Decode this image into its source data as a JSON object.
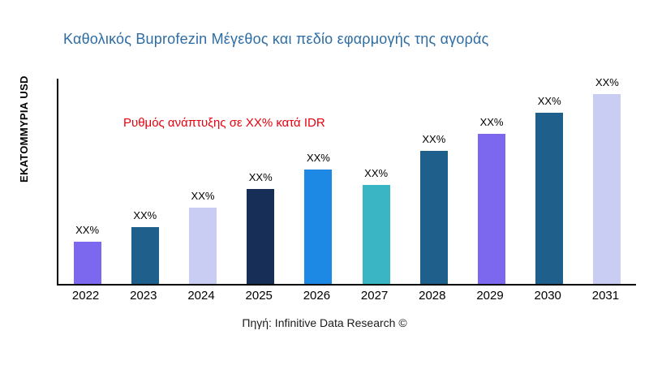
{
  "title": "Καθολικός Buprofezin Μέγεθος και πεδίο εφαρμογής της αγοράς",
  "y_axis_label": "ΕΚΑΤΟΜΜΥΡΙΑ USD",
  "annotation": {
    "text": "Ρυθμός ανάπτυξης σε XX% κατά IDR",
    "color": "#e8000d"
  },
  "source": "Πηγή: Infinitive Data Research ©",
  "colors": {
    "title": "#2e6da4",
    "annotation": "#e8000d",
    "axis": "#000000"
  },
  "chart_data": {
    "type": "bar",
    "title": "Καθολικός Buprofezin Μέγεθος και πεδίο εφαρμογής της αγοράς",
    "xlabel": "",
    "ylabel": "ΕΚΑΤΟΜΜΥΡΙΑ USD",
    "categories": [
      "2022",
      "2023",
      "2024",
      "2025",
      "2026",
      "2027",
      "2028",
      "2029",
      "2030",
      "2031"
    ],
    "values": [
      22,
      30,
      40,
      50,
      60,
      52,
      70,
      79,
      90,
      100
    ],
    "bar_labels": [
      "XX%",
      "XX%",
      "XX%",
      "XX%",
      "XX%",
      "XX%",
      "XX%",
      "XX%",
      "XX%",
      "XX%"
    ],
    "bar_colors": [
      "#7b68ee",
      "#1f5f8b",
      "#c9cdf3",
      "#172f56",
      "#1e88e5",
      "#3ab5c3",
      "#1f5f8b",
      "#7b68ee",
      "#1f5f8b",
      "#c9cdf3"
    ],
    "ylim": [
      0,
      108
    ],
    "grid": false,
    "legend": "none",
    "annotations": [
      "Ρυθμός ανάπτυξης σε XX% κατά IDR"
    ]
  }
}
